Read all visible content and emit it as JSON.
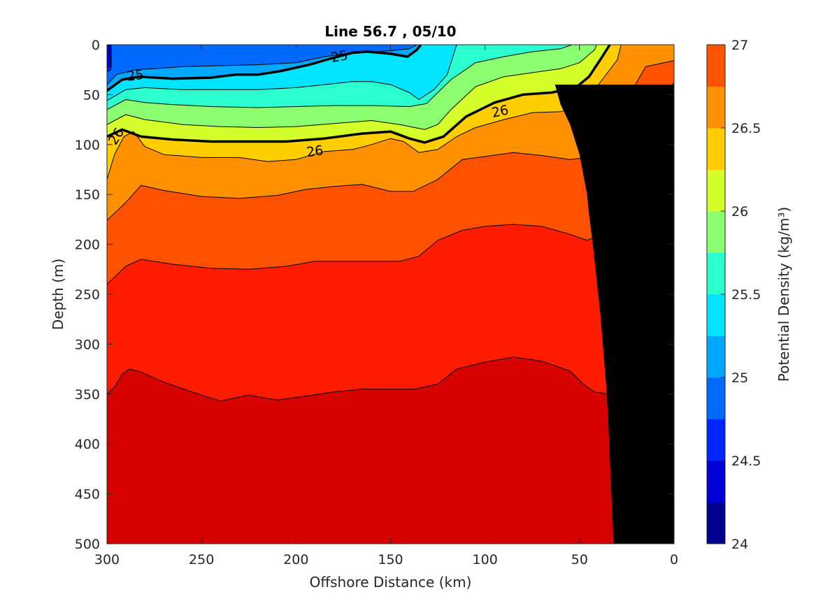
{
  "chart_data": {
    "type": "contour",
    "title": "Line 56.7 , 05/10",
    "xlabel": "Offshore Distance (km)",
    "ylabel": "Depth (m)",
    "colorbar_label": "Potential Density (kg/m³)",
    "xlim": [
      300,
      0
    ],
    "ylim": [
      0,
      500
    ],
    "x_reversed": true,
    "y_reversed": true,
    "grid": false,
    "x_ticks": [
      "300",
      "250",
      "200",
      "150",
      "100",
      "50",
      "0"
    ],
    "y_ticks": [
      "0",
      "50",
      "100",
      "150",
      "200",
      "250",
      "300",
      "350",
      "400",
      "450",
      "500"
    ],
    "colorbar_ticks": [
      "24",
      "24.5",
      "25",
      "25.5",
      "26",
      "26.5",
      "27"
    ],
    "colorbar_range": [
      24,
      27
    ],
    "contour_levels": [
      24,
      24.25,
      24.5,
      24.75,
      25,
      25.25,
      25.5,
      25.75,
      26,
      26.25,
      26.5,
      26.75,
      27
    ],
    "colormap": [
      "#00008f",
      "#0000d8",
      "#0025ff",
      "#0069ff",
      "#00a8ff",
      "#00e4ff",
      "#2bffcf",
      "#8cff70",
      "#d4ff2b",
      "#ffce00",
      "#ff9100",
      "#ff5200",
      "#ff1c00",
      "#d50000"
    ],
    "labeled_contours": [
      "25",
      "25",
      "26",
      "26",
      "26"
    ],
    "isopycnals": [
      {
        "level": 24.5,
        "points": [
          [
            299.5,
            0
          ],
          [
            298,
            12
          ],
          [
            298,
            25
          ],
          [
            300,
            27
          ]
        ]
      },
      {
        "level": 24.75,
        "points": [
          [
            300,
            40
          ],
          [
            295,
            30
          ],
          [
            285,
            25
          ],
          [
            275,
            24
          ],
          [
            260,
            22
          ],
          [
            240,
            21
          ],
          [
            220,
            20
          ],
          [
            200,
            18
          ],
          [
            185,
            12
          ],
          [
            170,
            8
          ],
          [
            160,
            7
          ],
          [
            150,
            6
          ],
          [
            140,
            4
          ],
          [
            136,
            0
          ]
        ]
      },
      {
        "level": 25.0,
        "points": [
          [
            300,
            46
          ],
          [
            292,
            35
          ],
          [
            283,
            32
          ],
          [
            265,
            34
          ],
          [
            245,
            33
          ],
          [
            232,
            30
          ],
          [
            220,
            30
          ],
          [
            207,
            26
          ],
          [
            193,
            20
          ],
          [
            182,
            14
          ],
          [
            170,
            8
          ],
          [
            162,
            7
          ],
          [
            150,
            9
          ],
          [
            141,
            12
          ],
          [
            136,
            5
          ],
          [
            134,
            0
          ]
        ]
      },
      {
        "level": 25.25,
        "points": [
          [
            300,
            56
          ],
          [
            290,
            45
          ],
          [
            280,
            43
          ],
          [
            260,
            45
          ],
          [
            240,
            45
          ],
          [
            220,
            45
          ],
          [
            200,
            43
          ],
          [
            185,
            40
          ],
          [
            170,
            37
          ],
          [
            160,
            37
          ],
          [
            150,
            40
          ],
          [
            140,
            48
          ],
          [
            135,
            55
          ],
          [
            127,
            45
          ],
          [
            120,
            30
          ],
          [
            115,
            0
          ]
        ]
      },
      {
        "level": 25.5,
        "points": [
          [
            300,
            65
          ],
          [
            290,
            55
          ],
          [
            280,
            58
          ],
          [
            265,
            60
          ],
          [
            245,
            62
          ],
          [
            220,
            63
          ],
          [
            200,
            62
          ],
          [
            180,
            61
          ],
          [
            160,
            61
          ],
          [
            140,
            62
          ],
          [
            131,
            59
          ],
          [
            125,
            48
          ],
          [
            118,
            35
          ],
          [
            105,
            18
          ],
          [
            90,
            12
          ],
          [
            75,
            7
          ],
          [
            60,
            4
          ],
          [
            54,
            0
          ]
        ]
      },
      {
        "level": 25.75,
        "points": [
          [
            300,
            80
          ],
          [
            290,
            70
          ],
          [
            280,
            75
          ],
          [
            260,
            80
          ],
          [
            240,
            82
          ],
          [
            220,
            83
          ],
          [
            200,
            82
          ],
          [
            180,
            79
          ],
          [
            160,
            76
          ],
          [
            145,
            80
          ],
          [
            132,
            85
          ],
          [
            125,
            80
          ],
          [
            118,
            65
          ],
          [
            105,
            42
          ],
          [
            90,
            32
          ],
          [
            75,
            28
          ],
          [
            60,
            24
          ],
          [
            50,
            18
          ],
          [
            42,
            5
          ],
          [
            41,
            0
          ]
        ]
      },
      {
        "level": 26.0,
        "points": [
          [
            300,
            92
          ],
          [
            292,
            85
          ],
          [
            282,
            92
          ],
          [
            265,
            95
          ],
          [
            245,
            97
          ],
          [
            225,
            97
          ],
          [
            205,
            97
          ],
          [
            185,
            94
          ],
          [
            165,
            89
          ],
          [
            150,
            87
          ],
          [
            140,
            94
          ],
          [
            132,
            98
          ],
          [
            122,
            92
          ],
          [
            110,
            72
          ],
          [
            95,
            58
          ],
          [
            80,
            50
          ],
          [
            65,
            48
          ],
          [
            52,
            43
          ],
          [
            45,
            32
          ],
          [
            38,
            12
          ],
          [
            34,
            0
          ]
        ]
      },
      {
        "level": 26.25,
        "points": [
          [
            300,
            135
          ],
          [
            296,
            110
          ],
          [
            291,
            92
          ],
          [
            286,
            87
          ],
          [
            280,
            102
          ],
          [
            270,
            110
          ],
          [
            250,
            113
          ],
          [
            230,
            113
          ],
          [
            215,
            117
          ],
          [
            200,
            115
          ],
          [
            185,
            107
          ],
          [
            170,
            105
          ],
          [
            160,
            100
          ],
          [
            150,
            94
          ],
          [
            143,
            97
          ],
          [
            135,
            108
          ],
          [
            125,
            105
          ],
          [
            115,
            92
          ],
          [
            105,
            83
          ],
          [
            90,
            75
          ],
          [
            75,
            68
          ],
          [
            60,
            67
          ],
          [
            50,
            62
          ],
          [
            45,
            52
          ],
          [
            38,
            35
          ],
          [
            30,
            15
          ],
          [
            28,
            0
          ]
        ]
      },
      {
        "level": 26.5,
        "points": [
          [
            300,
            176
          ],
          [
            290,
            158
          ],
          [
            282,
            141
          ],
          [
            270,
            146
          ],
          [
            250,
            152
          ],
          [
            230,
            154
          ],
          [
            210,
            151
          ],
          [
            195,
            145
          ],
          [
            180,
            142
          ],
          [
            165,
            140
          ],
          [
            150,
            147
          ],
          [
            138,
            147
          ],
          [
            125,
            135
          ],
          [
            112,
            115
          ],
          [
            100,
            112
          ],
          [
            85,
            108
          ],
          [
            70,
            111
          ],
          [
            55,
            115
          ],
          [
            46,
            113
          ],
          [
            40,
            100
          ],
          [
            32,
            75
          ],
          [
            22,
            45
          ],
          [
            15,
            22
          ],
          [
            0,
            16
          ]
        ]
      },
      {
        "level": 26.75,
        "points": [
          [
            300,
            240
          ],
          [
            290,
            222
          ],
          [
            282,
            215
          ],
          [
            265,
            220
          ],
          [
            245,
            224
          ],
          [
            225,
            225
          ],
          [
            205,
            222
          ],
          [
            190,
            217
          ],
          [
            175,
            217
          ],
          [
            160,
            217
          ],
          [
            145,
            217
          ],
          [
            135,
            212
          ],
          [
            125,
            196
          ],
          [
            112,
            186
          ],
          [
            100,
            182
          ],
          [
            85,
            180
          ],
          [
            70,
            182
          ],
          [
            55,
            190
          ],
          [
            46,
            196
          ],
          [
            38,
            190
          ],
          [
            30,
            170
          ],
          [
            20,
            150
          ],
          [
            15,
            100
          ],
          [
            8,
            60
          ],
          [
            0,
            38
          ]
        ]
      },
      {
        "level": 27.0,
        "points": [
          [
            300,
            350
          ],
          [
            296,
            343
          ],
          [
            292,
            330
          ],
          [
            288,
            325
          ],
          [
            282,
            328
          ],
          [
            270,
            338
          ],
          [
            255,
            348
          ],
          [
            240,
            357
          ],
          [
            225,
            351
          ],
          [
            210,
            356
          ],
          [
            195,
            352
          ],
          [
            180,
            348
          ],
          [
            165,
            345
          ],
          [
            150,
            345
          ],
          [
            137,
            345
          ],
          [
            125,
            340
          ],
          [
            115,
            325
          ],
          [
            100,
            318
          ],
          [
            85,
            313
          ],
          [
            70,
            317
          ],
          [
            55,
            327
          ],
          [
            48,
            340
          ],
          [
            42,
            348
          ],
          [
            35,
            350
          ],
          [
            30,
            355
          ]
        ]
      }
    ],
    "contour_label_positions": [
      {
        "text": "25",
        "x": 285,
        "y": 31,
        "angle": -8
      },
      {
        "text": "25",
        "x": 177,
        "y": 12,
        "angle": -10
      },
      {
        "text": "26",
        "x": 295,
        "y": 92,
        "angle": -58
      },
      {
        "text": "26",
        "x": 190,
        "y": 107,
        "angle": -8
      },
      {
        "text": "26",
        "x": 92,
        "y": 67,
        "angle": -12
      }
    ],
    "land_mask": [
      [
        32,
        500
      ],
      [
        35,
        370
      ],
      [
        36,
        340
      ],
      [
        39,
        270
      ],
      [
        43,
        200
      ],
      [
        45,
        170
      ],
      [
        46,
        150
      ],
      [
        50,
        110
      ],
      [
        55,
        80
      ],
      [
        60,
        60
      ],
      [
        63,
        40
      ],
      [
        0,
        40
      ],
      [
        0,
        500
      ]
    ]
  }
}
